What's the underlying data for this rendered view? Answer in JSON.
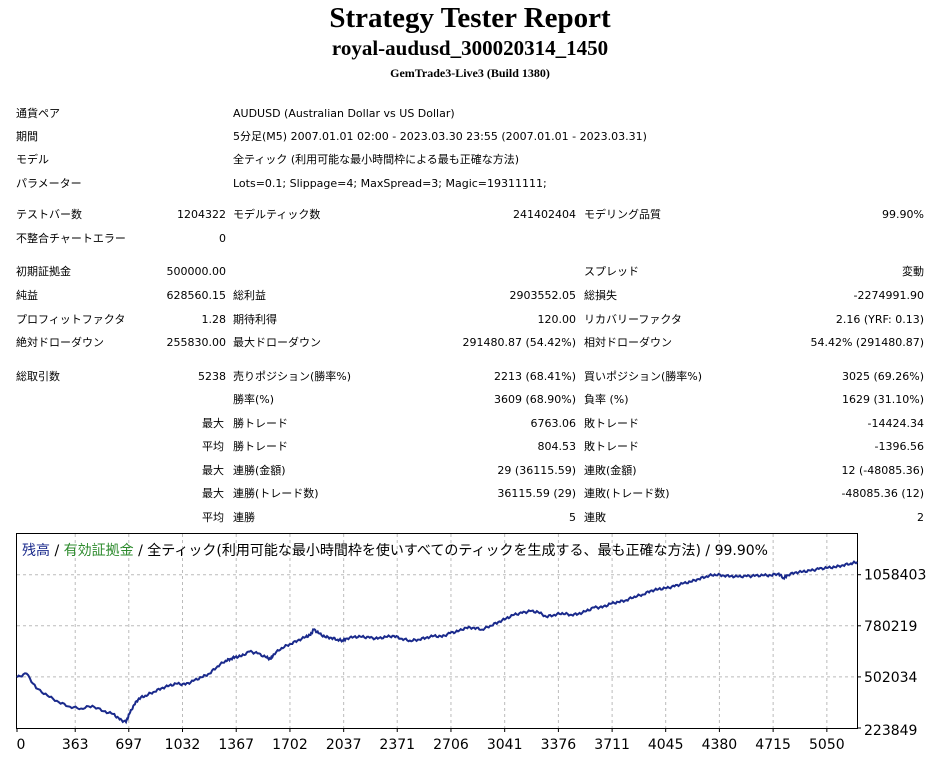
{
  "header": {
    "title": "Strategy Tester Report",
    "subtitle": "royal-audusd_300020314_1450",
    "build": "GemTrade3-Live3 (Build 1380)"
  },
  "settings": [
    {
      "label": "通貨ペア",
      "value": "AUDUSD (Australian Dollar vs US Dollar)"
    },
    {
      "label": "期間",
      "value": "5分足(M5) 2007.01.01 02:00 - 2023.03.30 23:55 (2007.01.01 - 2023.03.31)"
    },
    {
      "label": "モデル",
      "value": "全ティック (利用可能な最小時間枠による最も正確な方法)"
    },
    {
      "label": "パラメーター",
      "value": "Lots=0.1; Slippage=4; MaxSpread=3; Magic=19311111;"
    }
  ],
  "stats": {
    "bars": {
      "label": "テストバー数",
      "value": "1204322"
    },
    "ticks": {
      "label": "モデルティック数",
      "value": "241402404"
    },
    "quality": {
      "label": "モデリング品質",
      "value": "99.90%"
    },
    "mismatch": {
      "label": "不整合チャートエラー",
      "value": "0"
    },
    "deposit": {
      "label": "初期証拠金",
      "value": "500000.00"
    },
    "spread": {
      "label": "スプレッド",
      "value": "変動"
    },
    "net_profit": {
      "label": "純益",
      "value": "628560.15"
    },
    "gross_profit": {
      "label": "総利益",
      "value": "2903552.05"
    },
    "gross_loss": {
      "label": "総損失",
      "value": "-2274991.90"
    },
    "profit_factor": {
      "label": "プロフィットファクタ",
      "value": "1.28"
    },
    "expected_payoff": {
      "label": "期待利得",
      "value": "120.00"
    },
    "recovery_factor": {
      "label": "リカバリーファクタ",
      "value": "2.16 (YRF: 0.13)"
    },
    "abs_drawdown": {
      "label": "絶対ドローダウン",
      "value": "255830.00"
    },
    "max_drawdown": {
      "label": "最大ドローダウン",
      "value": "291480.87 (54.42%)"
    },
    "rel_drawdown": {
      "label": "相対ドローダウン",
      "value": "54.42% (291480.87)"
    },
    "total_trades": {
      "label": "総取引数",
      "value": "5238"
    },
    "short_positions": {
      "label": "売りポジション(勝率%)",
      "value": "2213 (68.41%)"
    },
    "long_positions": {
      "label": "買いポジション(勝率%)",
      "value": "3025 (69.26%)"
    },
    "win_rate": {
      "label": "勝率(%)",
      "value": "3609 (68.90%)"
    },
    "loss_rate": {
      "label": "負率 (%)",
      "value": "1629 (31.10%)"
    },
    "max_label": "最大",
    "avg_label": "平均",
    "largest_win": {
      "label": "勝トレード",
      "value": "6763.06"
    },
    "largest_loss": {
      "label": "敗トレード",
      "value": "-14424.34"
    },
    "avg_win": {
      "label": "勝トレード",
      "value": "804.53"
    },
    "avg_loss": {
      "label": "敗トレード",
      "value": "-1396.56"
    },
    "max_consec_wins_money": {
      "label": "連勝(金額)",
      "value": "29 (36115.59)"
    },
    "max_consec_losses_money": {
      "label": "連敗(金額)",
      "value": "12 (-48085.36)"
    },
    "max_consec_wins_count": {
      "label": "連勝(トレード数)",
      "value": "36115.59 (29)"
    },
    "max_consec_losses_count": {
      "label": "連敗(トレード数)",
      "value": "-48085.36 (12)"
    },
    "avg_consec_wins": {
      "label": "連勝",
      "value": "5"
    },
    "avg_consec_losses": {
      "label": "連敗",
      "value": "2"
    }
  },
  "legend": {
    "balance": "残高",
    "sep1": " / ",
    "equity": "有効証拠金",
    "sep2": " / ",
    "model": "全ティック(利用可能な最小時間枠を使いすべてのティックを生成する、最も正確な方法) / 99.90%",
    "balance_color": "#1a2a8c",
    "equity_color": "#2e8b2e"
  },
  "chart_data": {
    "type": "line",
    "title": "",
    "xlabel": "",
    "ylabel": "",
    "xlim": [
      0,
      5238
    ],
    "ylim": [
      223849,
      1280000
    ],
    "grid": true,
    "x_ticks": [
      0,
      363,
      697,
      1032,
      1367,
      1702,
      2037,
      2371,
      2706,
      3041,
      3376,
      3711,
      4045,
      4380,
      4715,
      5050
    ],
    "y_ticks": [
      223849,
      502034,
      780219,
      1058403
    ],
    "series": [
      {
        "name": "残高",
        "color": "#1a2a8c",
        "x": [
          0,
          60,
          120,
          190,
          260,
          330,
          400,
          470,
          540,
          600,
          640,
          680,
          700,
          730,
          760,
          800,
          850,
          900,
          950,
          1000,
          1050,
          1100,
          1150,
          1200,
          1250,
          1300,
          1330,
          1360,
          1400,
          1450,
          1500,
          1550,
          1580,
          1600,
          1650,
          1700,
          1750,
          1800,
          1830,
          1850,
          1880,
          1920,
          1960,
          2000,
          2030,
          2050,
          2100,
          2150,
          2200,
          2250,
          2300,
          2350,
          2400,
          2450,
          2500,
          2550,
          2600,
          2650,
          2700,
          2750,
          2800,
          2850,
          2900,
          2950,
          3000,
          3050,
          3100,
          3150,
          3200,
          3250,
          3300,
          3350,
          3400,
          3450,
          3500,
          3550,
          3600,
          3650,
          3700,
          3750,
          3800,
          3850,
          3900,
          3950,
          4000,
          4050,
          4100,
          4150,
          4200,
          4250,
          4300,
          4350,
          4400,
          4450,
          4500,
          4550,
          4600,
          4650,
          4700,
          4750,
          4780,
          4800,
          4850,
          4900,
          4950,
          5000,
          5050,
          5100,
          5150,
          5200,
          5238
        ],
        "y": [
          500000,
          520000,
          440000,
          400000,
          365000,
          340000,
          330000,
          345000,
          315000,
          300000,
          270000,
          255830,
          300000,
          350000,
          385000,
          400000,
          420000,
          440000,
          455000,
          465000,
          460000,
          480000,
          500000,
          520000,
          560000,
          590000,
          600000,
          610000,
          615000,
          640000,
          630000,
          610000,
          600000,
          625000,
          660000,
          680000,
          700000,
          720000,
          730000,
          760000,
          740000,
          720000,
          715000,
          705000,
          700000,
          710000,
          720000,
          720000,
          715000,
          710000,
          720000,
          725000,
          710000,
          700000,
          705000,
          715000,
          725000,
          720000,
          740000,
          750000,
          770000,
          770000,
          760000,
          780000,
          800000,
          820000,
          840000,
          850000,
          860000,
          855000,
          830000,
          840000,
          850000,
          840000,
          845000,
          860000,
          880000,
          880000,
          900000,
          910000,
          920000,
          940000,
          950000,
          970000,
          980000,
          985000,
          995000,
          1010000,
          1020000,
          1035000,
          1050000,
          1060000,
          1055000,
          1050000,
          1048000,
          1050000,
          1052000,
          1055000,
          1055000,
          1065000,
          1040000,
          1055000,
          1070000,
          1075000,
          1080000,
          1090000,
          1095000,
          1100000,
          1110000,
          1120000,
          1128000
        ]
      }
    ]
  }
}
